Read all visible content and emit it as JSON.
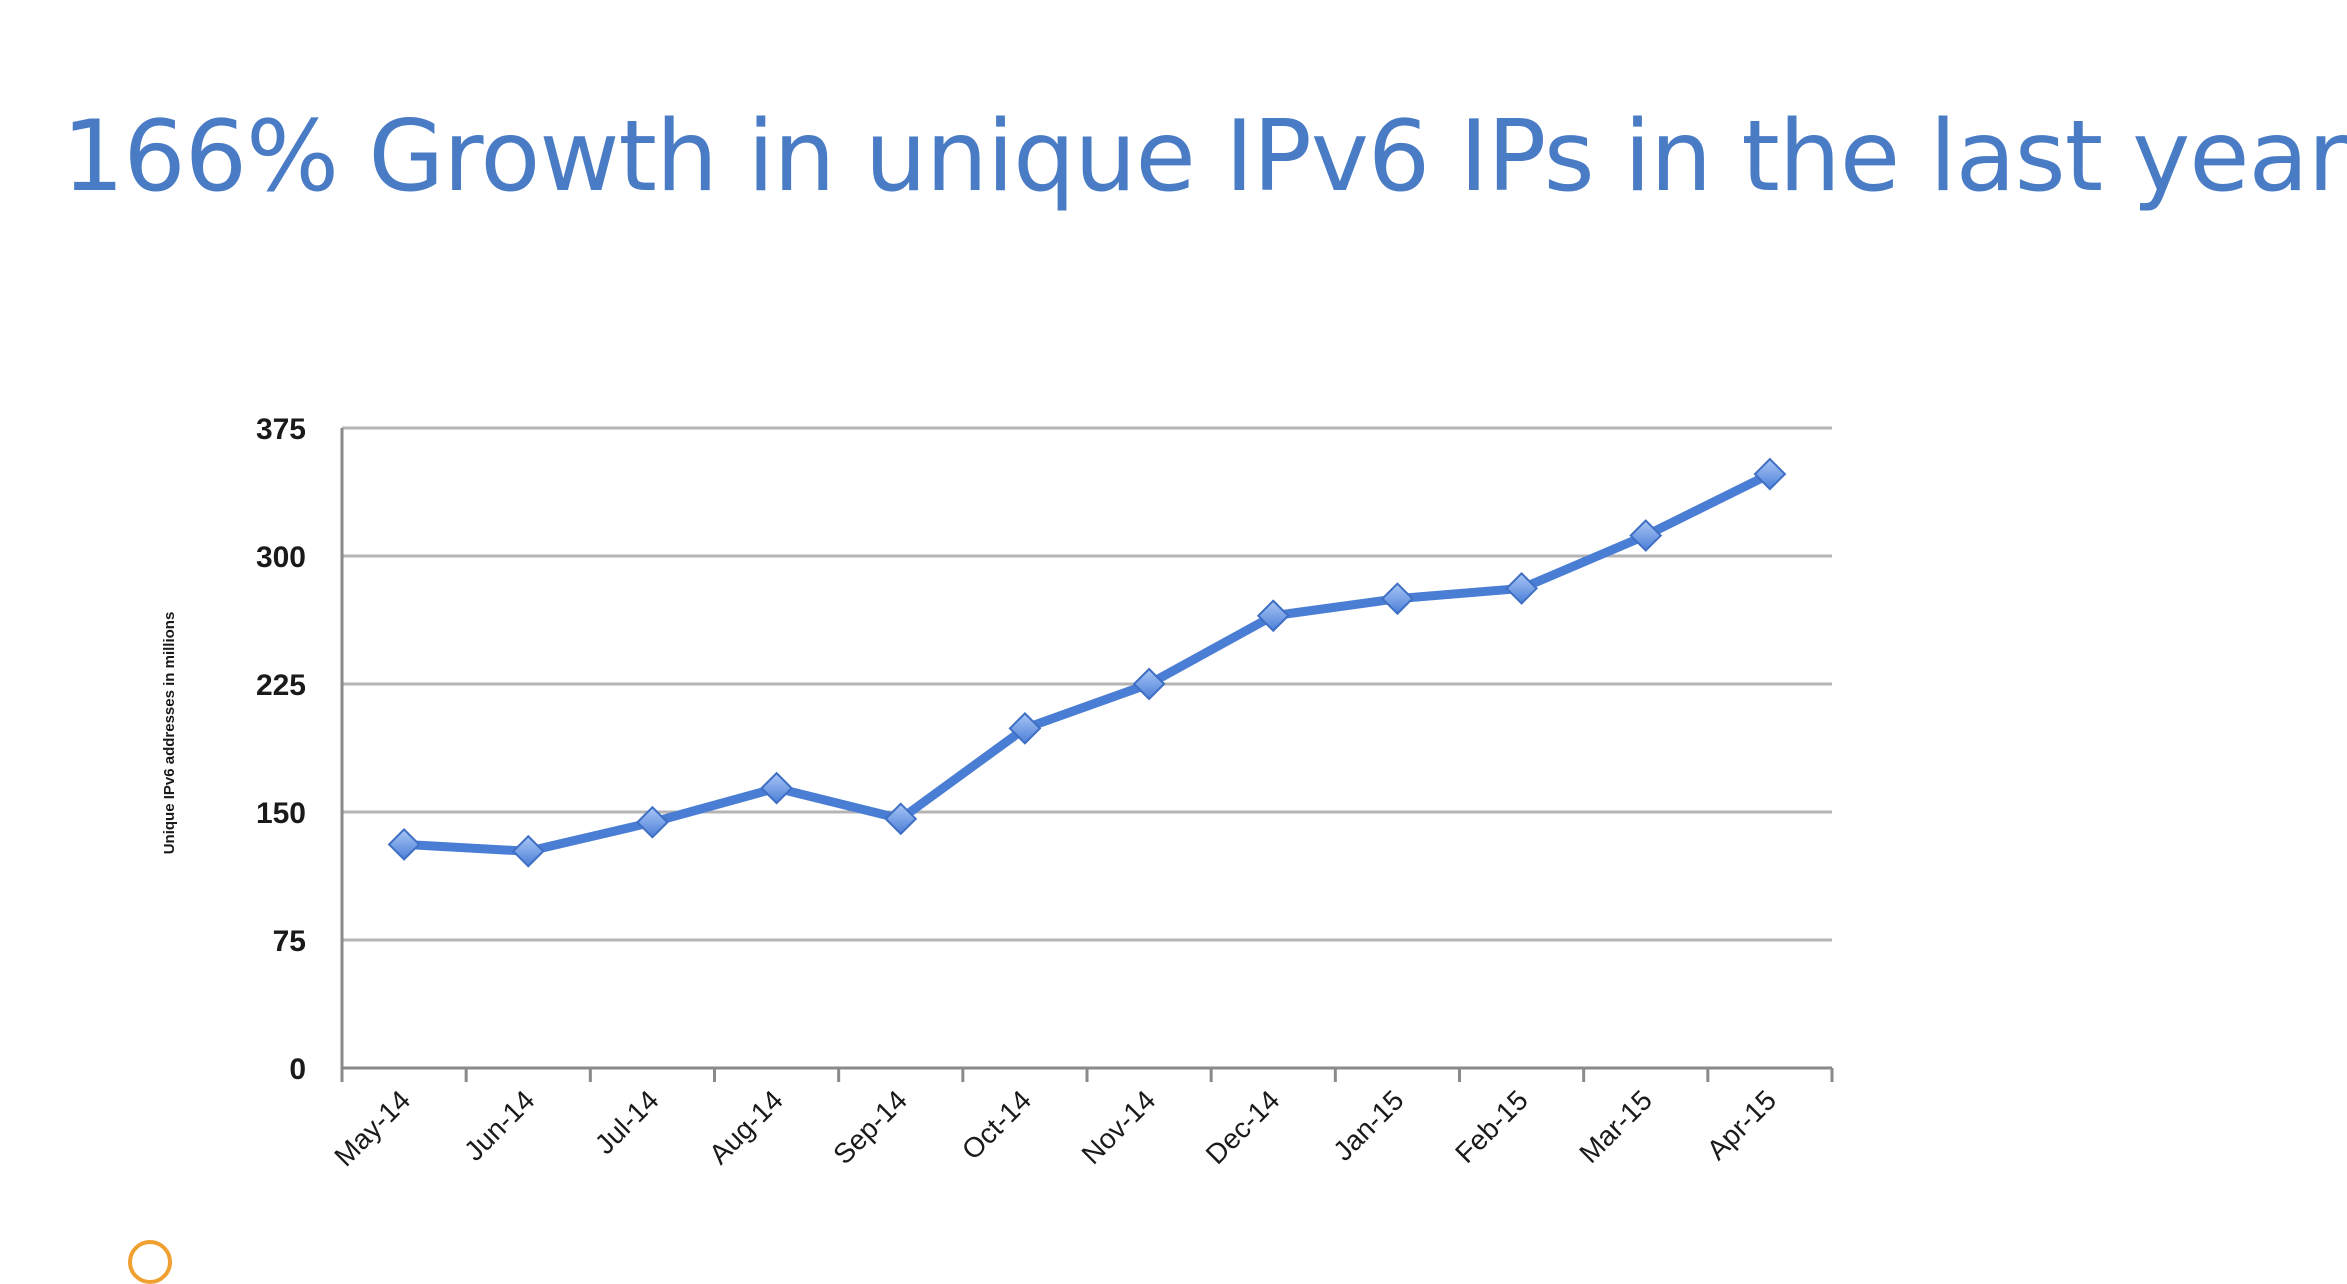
{
  "title": "166% Growth in unique IPv6 IPs in the last year",
  "colors": {
    "title": "#4a7cc5",
    "line": "#4a7dd4",
    "marker": "#6f9be6",
    "grid": "#b4b4b4",
    "axis": "#8a8a8a"
  },
  "chart_data": {
    "type": "line",
    "title": "",
    "xlabel": "",
    "ylabel": "Unique IPv6 addresses in millions",
    "categories": [
      "May-14",
      "Jun-14",
      "Jul-14",
      "Aug-14",
      "Sep-14",
      "Oct-14",
      "Nov-14",
      "Dec-14",
      "Jan-15",
      "Feb-15",
      "Mar-15",
      "Apr-15"
    ],
    "series": [
      {
        "name": "Unique IPv6 addresses",
        "values": [
          131,
          127,
          144,
          164,
          146,
          199,
          225,
          265,
          275,
          281,
          312,
          348
        ]
      }
    ],
    "ylim": [
      0,
      375
    ],
    "yticks": [
      0,
      75,
      150,
      225,
      300,
      375
    ],
    "grid": true,
    "marker": "diamond"
  }
}
